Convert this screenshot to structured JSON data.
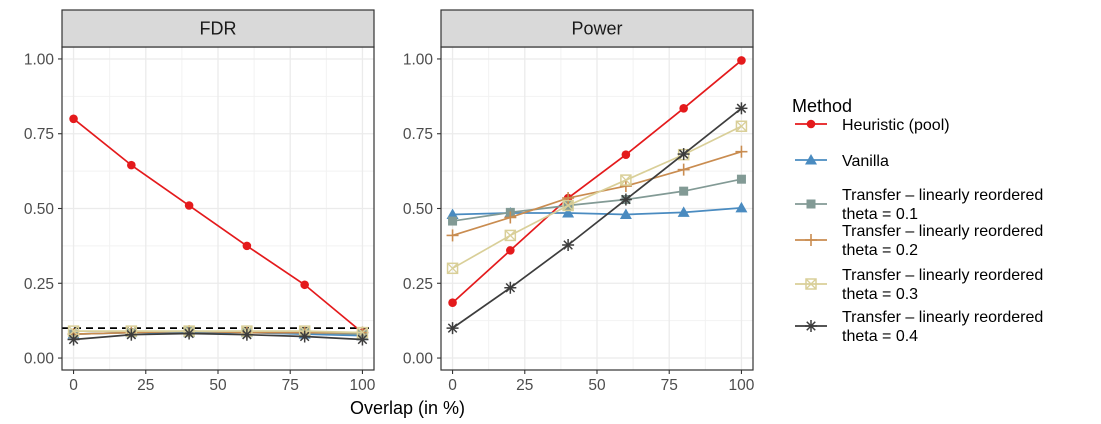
{
  "chart_data": {
    "type": "line",
    "xlabel": "Overlap (in %)",
    "x": [
      0,
      20,
      40,
      60,
      80,
      100
    ],
    "xticks": [
      0,
      25,
      50,
      75,
      100
    ],
    "xlim": [
      -4,
      104
    ],
    "ylim": [
      -0.04,
      1.04
    ],
    "yticks": [
      "0.00",
      "0.25",
      "0.50",
      "0.75",
      "1.00"
    ],
    "grid": true,
    "legend": {
      "title": "Method",
      "placement": "right",
      "items": [
        {
          "series": 0,
          "lines": [
            "Heuristic (pool)"
          ]
        },
        {
          "series": 1,
          "lines": [
            "Vanilla"
          ]
        },
        {
          "series": 2,
          "lines": [
            "Transfer – linearly reordered",
            " theta = 0.1"
          ]
        },
        {
          "series": 3,
          "lines": [
            "Transfer – linearly reordered",
            " theta = 0.2"
          ]
        },
        {
          "series": 4,
          "lines": [
            "Transfer – linearly reordered",
            " theta = 0.3"
          ]
        },
        {
          "series": 5,
          "lines": [
            "Transfer – linearly reordered",
            " theta = 0.4"
          ]
        }
      ]
    },
    "series_styles": [
      {
        "color": "#e41a1c",
        "marker": "circle"
      },
      {
        "color": "#4a8bc0",
        "marker": "triangle"
      },
      {
        "color": "#829a95",
        "marker": "square"
      },
      {
        "color": "#c98c50",
        "marker": "plus"
      },
      {
        "color": "#d9cf98",
        "marker": "square-x"
      },
      {
        "color": "#3d3d3d",
        "marker": "asterisk"
      }
    ],
    "panels": [
      {
        "title": "FDR",
        "reference_line": {
          "y": 0.1,
          "style": "dashed",
          "color": "#000000"
        },
        "series": [
          {
            "values": [
              0.8,
              0.645,
              0.51,
              0.375,
              0.245,
              0.085
            ]
          },
          {
            "values": [
              0.08,
              0.085,
              0.085,
              0.085,
              0.08,
              0.075
            ]
          },
          {
            "values": [
              0.08,
              0.085,
              0.09,
              0.085,
              0.085,
              0.08
            ]
          },
          {
            "values": [
              0.08,
              0.085,
              0.09,
              0.085,
              0.085,
              0.085
            ]
          },
          {
            "values": [
              0.09,
              0.09,
              0.09,
              0.09,
              0.09,
              0.085
            ]
          },
          {
            "values": [
              0.062,
              0.078,
              0.082,
              0.078,
              0.072,
              0.062
            ]
          }
        ]
      },
      {
        "title": "Power",
        "series": [
          {
            "values": [
              0.185,
              0.36,
              0.535,
              0.68,
              0.835,
              0.995
            ]
          },
          {
            "values": [
              0.48,
              0.485,
              0.485,
              0.48,
              0.487,
              0.502
            ]
          },
          {
            "values": [
              0.458,
              0.487,
              0.51,
              0.53,
              0.558,
              0.598
            ]
          },
          {
            "values": [
              0.41,
              0.47,
              0.535,
              0.575,
              0.63,
              0.69
            ]
          },
          {
            "values": [
              0.3,
              0.41,
              0.51,
              0.595,
              0.68,
              0.775
            ]
          },
          {
            "values": [
              0.1,
              0.235,
              0.378,
              0.53,
              0.682,
              0.835
            ]
          }
        ]
      }
    ]
  }
}
